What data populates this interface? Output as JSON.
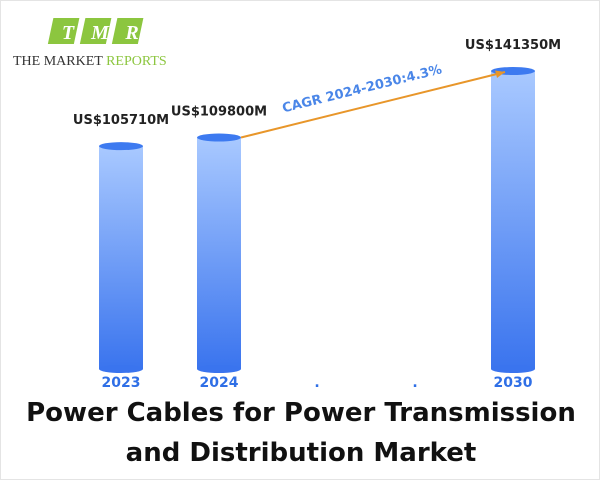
{
  "logo": {
    "letters": [
      "T",
      "M",
      "R"
    ],
    "name": "THE MARKET",
    "name_accent": "REPORTS"
  },
  "chart_data": {
    "type": "bar",
    "title": "Power Cables for Power Transmission and Distribution Market",
    "categories": [
      "2023",
      "2024",
      ".",
      ".",
      "2030"
    ],
    "values": [
      105710,
      109800,
      null,
      null,
      141350
    ],
    "value_labels": [
      "US$105710M",
      "US$109800M",
      null,
      null,
      "US$141350M"
    ],
    "color": "#3d7af0",
    "annotation": "CAGR 2024-2030:4.3%"
  }
}
